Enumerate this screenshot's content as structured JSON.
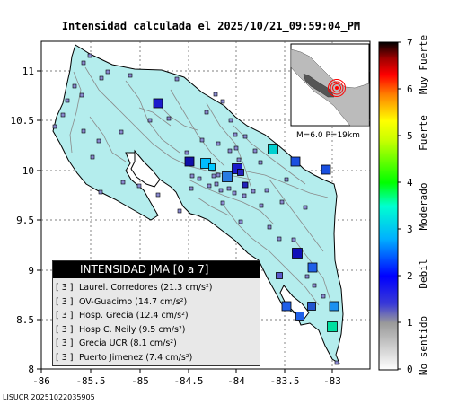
{
  "title": "Intensidad calculada el 2025/10/21_09:59:04_PM",
  "footer": "LISUCR 20251022035905",
  "map": {
    "x_ticks": [
      "-86",
      "-85.5",
      "-85",
      "-84.5",
      "-84",
      "-83.5",
      "-83"
    ],
    "y_ticks": [
      "11",
      "10.5",
      "10",
      "9.5",
      "9",
      "8.5",
      "8"
    ]
  },
  "inset": {
    "label": "M=6.0 P=19km"
  },
  "legend": {
    "header": "INTENSIDAD JMA [0 a 7]",
    "rows": [
      {
        "intensity": "[ 3 ]",
        "station": "Laurel. Corredores (21.3 cm/s²)"
      },
      {
        "intensity": "[ 3 ]",
        "station": "OV-Guacimo (14.7 cm/s²)"
      },
      {
        "intensity": "[ 3 ]",
        "station": "Hosp. Grecia (12.4 cm/s²)"
      },
      {
        "intensity": "[ 3 ]",
        "station": "Hosp C. Neily (9.5 cm/s²)"
      },
      {
        "intensity": "[ 3 ]",
        "station": "Grecia UCR (8.1 cm/s²)"
      },
      {
        "intensity": "[ 3 ]",
        "station": "Puerto Jimenez (7.4 cm/s²)"
      }
    ]
  },
  "colorbar": {
    "tick_labels": [
      "0",
      "1",
      "2",
      "3",
      "4",
      "5",
      "6",
      "7"
    ],
    "categories": [
      "No sentido",
      "Debil",
      "Moderado",
      "Fuerte",
      "Muy Fuerte"
    ],
    "colors": [
      "#ffffff",
      "#888888",
      "#0000ff",
      "#00ffff",
      "#00ff00",
      "#ffff00",
      "#ff0000",
      "#000000"
    ]
  }
}
